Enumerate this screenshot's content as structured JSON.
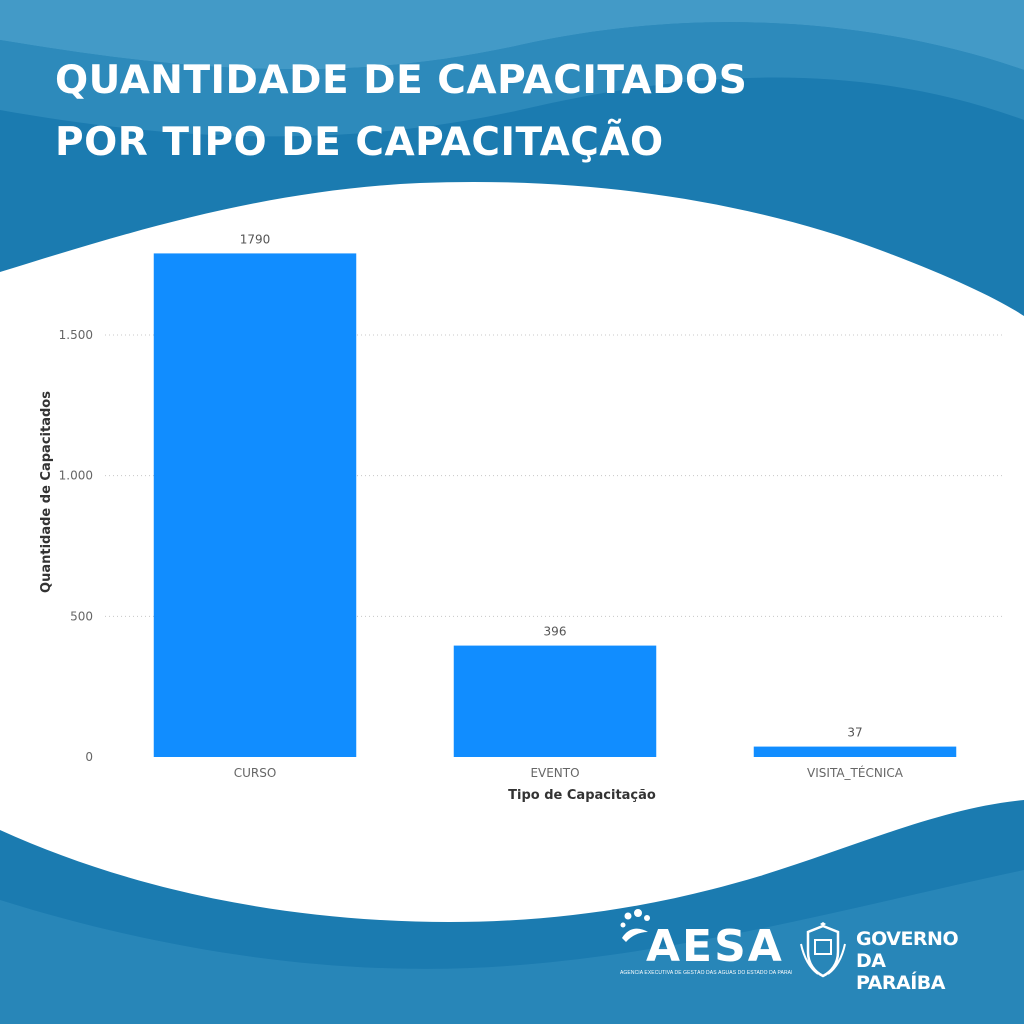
{
  "header": {
    "title_line1": "QUANTIDADE DE CAPACITADOS",
    "title_line2": "POR TIPO DE CAPACITAÇÃO"
  },
  "colors": {
    "bar": "#118dff",
    "background_dark": "#1b7bb0",
    "wave_light": "#5aa9cf",
    "panel": "#ffffff"
  },
  "chart_data": {
    "type": "bar",
    "categories": [
      "CURSO",
      "EVENTO",
      "VISITA_TÉCNICA"
    ],
    "values": [
      1790,
      396,
      37
    ],
    "data_labels": [
      "1790",
      "396",
      "37"
    ],
    "yticks": [
      0,
      500,
      1000,
      1500
    ],
    "ytick_labels": [
      "0",
      "500",
      "1.000",
      "1.500"
    ],
    "xlabel": "Tipo de Capacitação",
    "ylabel": "Quantidade de Capacitados",
    "ylim": [
      0,
      1850
    ],
    "grid": true,
    "legend": "none"
  },
  "footer": {
    "aesa_logo": "AESA",
    "aesa_tagline": "AGÊNCIA EXECUTIVA DE GESTÃO DAS ÁGUAS DO ESTADO DA PARAÍBA",
    "gov_line1": "GOVERNO",
    "gov_line2": "DA PARAÍBA",
    "aesa_icon": "water-splash-icon",
    "gov_icon": "state-seal-icon"
  }
}
